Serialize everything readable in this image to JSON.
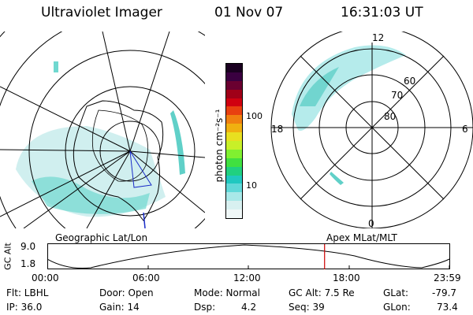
{
  "header": {
    "instrument": "Ultraviolet Imager",
    "date": "01 Nov 07",
    "time": "16:31:03 UT"
  },
  "colorbar": {
    "unit_label": "photon cm⁻²s⁻¹",
    "tick_labels": [
      "100",
      "10"
    ],
    "tick_values": [
      100,
      10
    ],
    "colors": [
      "#1a0020",
      "#3a0040",
      "#6a0030",
      "#a00018",
      "#d00010",
      "#e84010",
      "#f08010",
      "#f0b010",
      "#e8e020",
      "#c8f028",
      "#80f030",
      "#40e040",
      "#20d080",
      "#20c8c0",
      "#60d8d8",
      "#a8e8e8",
      "#d8f0f0",
      "#f0f8f8"
    ],
    "range": [
      2,
      600
    ],
    "scale": "log"
  },
  "left_map": {
    "label": "Geographic Lat/Lon"
  },
  "right_map": {
    "label": "Apex MLat/MLT",
    "mlt_labels": {
      "top": "12",
      "left": "18",
      "right": "6",
      "bottom": "0"
    },
    "lat_labels": [
      "60",
      "70",
      "80"
    ]
  },
  "altitude_plot": {
    "ylabel": "GC Alt",
    "yticks": [
      "9.0",
      "1.8"
    ],
    "xticks": [
      "00:00",
      "06:00",
      "12:00",
      "18:00",
      "23:59"
    ],
    "current_time_marker": "16:31",
    "marker_color": "#cc0000"
  },
  "status": {
    "flt": "Flt: LBHL",
    "ip": "IP: 36.0",
    "door": "Door: Open",
    "gain": "Gain: 14",
    "mode": "Mode: Normal",
    "dsp_label": "Dsp:",
    "dsp_value": "4.2",
    "gcalt": "GC Alt: 7.5 Re",
    "seq": "Seq: 39",
    "glat_label": "GLat:",
    "glat_value": "-79.7",
    "glon_label": "GLon:",
    "glon_value": "73.4"
  }
}
